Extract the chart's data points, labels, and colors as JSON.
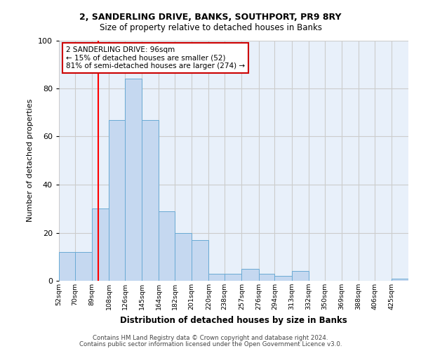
{
  "title_line1": "2, SANDERLING DRIVE, BANKS, SOUTHPORT, PR9 8RY",
  "title_line2": "Size of property relative to detached houses in Banks",
  "xlabel": "Distribution of detached houses by size in Banks",
  "ylabel": "Number of detached properties",
  "bin_labels": [
    "52sqm",
    "70sqm",
    "89sqm",
    "108sqm",
    "126sqm",
    "145sqm",
    "164sqm",
    "182sqm",
    "201sqm",
    "220sqm",
    "238sqm",
    "257sqm",
    "276sqm",
    "294sqm",
    "313sqm",
    "332sqm",
    "350sqm",
    "369sqm",
    "388sqm",
    "406sqm",
    "425sqm"
  ],
  "bin_edges": [
    52,
    70,
    89,
    108,
    126,
    145,
    164,
    182,
    201,
    220,
    238,
    257,
    276,
    294,
    313,
    332,
    350,
    369,
    388,
    406,
    425
  ],
  "bar_heights": [
    12,
    12,
    30,
    67,
    84,
    67,
    29,
    20,
    17,
    3,
    3,
    5,
    3,
    2,
    4,
    0,
    0,
    0,
    0,
    0,
    1
  ],
  "bar_color": "#c5d8f0",
  "bar_edge_color": "#6aaad4",
  "bg_color": "#e8f0fa",
  "red_line_x": 96,
  "annotation_text": "2 SANDERLING DRIVE: 96sqm\n← 15% of detached houses are smaller (52)\n81% of semi-detached houses are larger (274) →",
  "annotation_box_color": "#ffffff",
  "annotation_box_edge": "#cc0000",
  "ylim": [
    0,
    100
  ],
  "yticks": [
    0,
    20,
    40,
    60,
    80,
    100
  ],
  "footer_line1": "Contains HM Land Registry data © Crown copyright and database right 2024.",
  "footer_line2": "Contains public sector information licensed under the Open Government Licence v3.0."
}
